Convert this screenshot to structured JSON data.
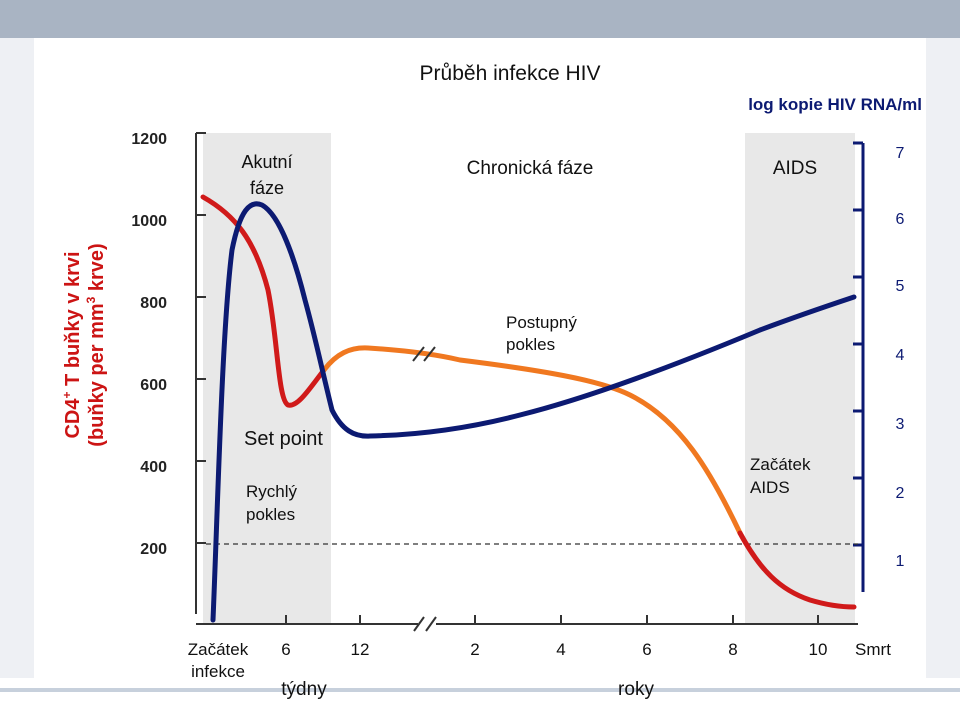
{
  "chart_data": {
    "type": "line",
    "title": "Průběh infekce HIV",
    "left_axis": {
      "label_line1": "CD4",
      "label_sup1": "+",
      "label_line1_rest": " T buňky v krvi",
      "label_line2": "(buňky per mm",
      "label_sup2": "3",
      "label_line2_rest": " krve)",
      "ticks": [
        "1200",
        "1000",
        "800",
        "600",
        "400",
        "200"
      ],
      "range": [
        200,
        1200
      ]
    },
    "right_axis": {
      "label": "log kopie HIV RNA/ml",
      "ticks": [
        "7",
        "6",
        "5",
        "4",
        "3",
        "2",
        "1"
      ],
      "range": [
        1,
        7
      ]
    },
    "x_axis": {
      "weeks_ticks": [
        "6",
        "12"
      ],
      "weeks_label": "týdny",
      "years_ticks": [
        "2",
        "4",
        "6",
        "8",
        "10"
      ],
      "years_label": "roky",
      "start_label_line1": "Začátek",
      "start_label_line2": "infekce",
      "end_label": "Smrt"
    },
    "phases": [
      {
        "label_line1": "Akutní",
        "label_line2": "fáze"
      },
      {
        "label_line1": "Chronická fáze",
        "label_line2": ""
      },
      {
        "label_line1": "AIDS",
        "label_line2": ""
      }
    ],
    "annotations": {
      "set_point": "Set point",
      "rapid_decline_1": "Rychlý",
      "rapid_decline_2": "pokles",
      "gradual_decline_1": "Postupný",
      "gradual_decline_2": "pokles",
      "aids_onset_1": "Začátek",
      "aids_onset_2": "AIDS"
    },
    "reference_line": {
      "cd4": 200,
      "style": "dashed"
    },
    "series": [
      {
        "name": "CD4+ T buňky",
        "color_acute": "#d01a1a",
        "color_chronic": "#f07820",
        "points": [
          {
            "t": "0 týdny",
            "v": 1000
          },
          {
            "t": "3 týdny",
            "v": 560
          },
          {
            "t": "12 týdny",
            "v": 740
          },
          {
            "t": "2 roky",
            "v": 700
          },
          {
            "t": "6 roky",
            "v": 620
          },
          {
            "t": "8 roky",
            "v": 200
          },
          {
            "t": "10 roky",
            "v": 120
          }
        ]
      },
      {
        "name": "HIV RNA",
        "color": "#0c1a72",
        "points": [
          {
            "t": "0 týdny",
            "v": 1.0
          },
          {
            "t": "4 týdny",
            "v": 6.4
          },
          {
            "t": "12 týdny",
            "v": 3.0
          },
          {
            "t": "4 roky",
            "v": 3.5
          },
          {
            "t": "8 roky",
            "v": 4.1
          },
          {
            "t": "10 roky",
            "v": 5.0
          }
        ]
      }
    ]
  }
}
